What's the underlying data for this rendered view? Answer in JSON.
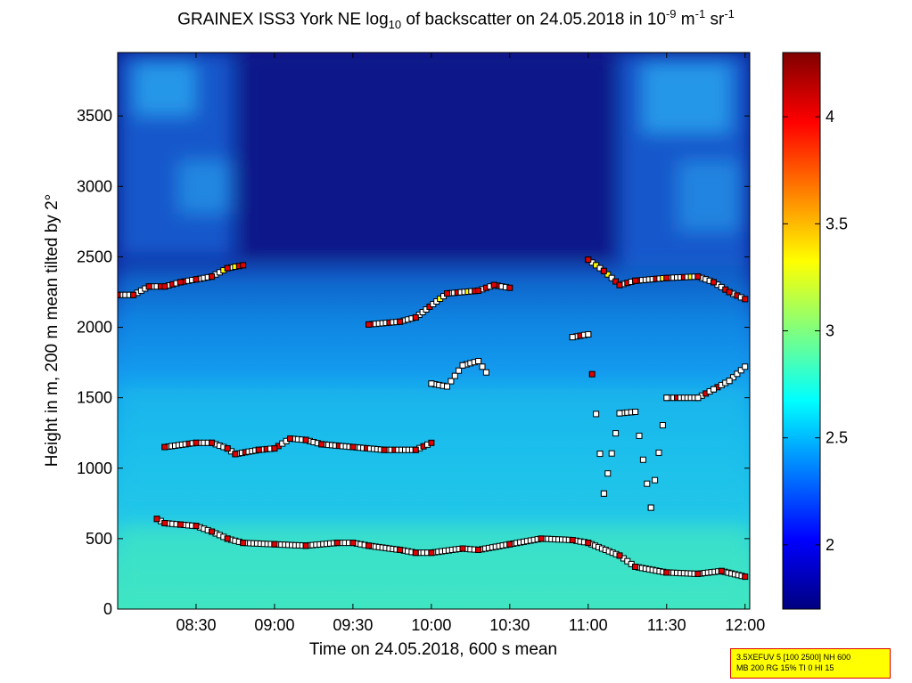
{
  "title": {
    "prefix": "GRAINEX ISS3 York NE log",
    "sub": "10",
    "mid": " of backscatter on 24.05.2018 in 10",
    "exp1": "-9",
    "unit1": " m",
    "exp2": "-1",
    "unit2": " sr",
    "exp3": "-1"
  },
  "info_box": {
    "line1": "3.5XEFUV 5 [100 2500] NH 600",
    "line2": "MB 200 RG 15% TI 0 HI 15"
  },
  "colors": {
    "background_low": "#0a1a8c",
    "mid_cyan": "#20c8e8",
    "surface_green": "#3ae0c0",
    "marker_edge": "#000000"
  },
  "chart_data": {
    "type": "heatmap",
    "title": "GRAINEX ISS3 York NE log10 of backscatter on 24.05.2018 in 10^-9 m^-1 sr^-1",
    "xlabel": "Time on 24.05.2018, 600 s mean",
    "ylabel": "Height in m, 200 m mean tilted by 2°",
    "x_ticks": [
      "08:30",
      "09:00",
      "09:30",
      "10:00",
      "10:30",
      "11:00",
      "11:30",
      "12:00"
    ],
    "x_tick_hours": [
      8.5,
      9.0,
      9.5,
      10.0,
      10.5,
      11.0,
      11.5,
      12.0
    ],
    "xlim_hours": [
      8.0,
      12.03
    ],
    "y_ticks": [
      0,
      500,
      1000,
      1500,
      2000,
      2500,
      3000,
      3500
    ],
    "ylim": [
      0,
      3950
    ],
    "colorbar": {
      "ticks": [
        2,
        2.5,
        3,
        3.5,
        4
      ],
      "tick_labels": [
        "2",
        "2.5",
        "3",
        "3.5",
        "4"
      ],
      "range": [
        1.7,
        4.3
      ],
      "colormap": "jet"
    },
    "aerosol_layer_top": [
      {
        "t": 8.0,
        "h": 2300
      },
      {
        "t": 8.5,
        "h": 2380
      },
      {
        "t": 9.0,
        "h": 2560
      },
      {
        "t": 9.5,
        "h": 2300
      },
      {
        "t": 10.0,
        "h": 2380
      },
      {
        "t": 10.5,
        "h": 2350
      },
      {
        "t": 11.0,
        "h": 2300
      },
      {
        "t": 11.5,
        "h": 2420
      },
      {
        "t": 12.0,
        "h": 2350
      }
    ],
    "series": [
      {
        "name": "",
        "marker_color": "#000000",
        "points": [
          [
            8.25,
            640
          ],
          [
            8.3,
            610
          ],
          [
            8.4,
            600
          ],
          [
            8.5,
            590
          ],
          [
            8.6,
            550
          ],
          [
            8.7,
            500
          ],
          [
            8.8,
            470
          ],
          [
            9.0,
            460
          ],
          [
            9.2,
            450
          ],
          [
            9.4,
            470
          ],
          [
            9.5,
            470
          ],
          [
            9.6,
            450
          ],
          [
            9.8,
            420
          ],
          [
            9.9,
            400
          ],
          [
            10.0,
            400
          ],
          [
            10.2,
            430
          ],
          [
            10.3,
            420
          ],
          [
            10.5,
            460
          ],
          [
            10.7,
            500
          ],
          [
            10.9,
            490
          ],
          [
            11.0,
            470
          ],
          [
            11.2,
            380
          ],
          [
            11.3,
            300
          ],
          [
            11.5,
            260
          ],
          [
            11.7,
            250
          ],
          [
            11.85,
            270
          ],
          [
            12.0,
            230
          ]
        ]
      },
      {
        "name": "",
        "marker_color": "#000000",
        "points": [
          [
            8.3,
            1150
          ],
          [
            8.5,
            1180
          ],
          [
            8.6,
            1180
          ],
          [
            8.7,
            1140
          ],
          [
            8.75,
            1100
          ],
          [
            8.9,
            1130
          ],
          [
            9.0,
            1140
          ],
          [
            9.1,
            1210
          ],
          [
            9.2,
            1200
          ],
          [
            9.3,
            1170
          ],
          [
            9.5,
            1150
          ],
          [
            9.7,
            1130
          ],
          [
            9.9,
            1130
          ],
          [
            10.0,
            1180
          ]
        ]
      },
      {
        "name": "",
        "marker_color": "#000000",
        "points": [
          [
            8.0,
            2230
          ],
          [
            8.1,
            2230
          ],
          [
            8.2,
            2290
          ],
          [
            8.3,
            2290
          ],
          [
            8.4,
            2320
          ],
          [
            8.5,
            2340
          ],
          [
            8.6,
            2360
          ],
          [
            8.7,
            2420
          ],
          [
            8.8,
            2440
          ],
          [
            9.6,
            2020
          ],
          [
            9.8,
            2040
          ],
          [
            9.9,
            2070
          ],
          [
            10.1,
            2240
          ],
          [
            10.3,
            2260
          ],
          [
            10.4,
            2300
          ],
          [
            10.5,
            2280
          ],
          [
            11.0,
            2480
          ],
          [
            11.1,
            2400
          ],
          [
            11.2,
            2300
          ],
          [
            11.3,
            2330
          ],
          [
            11.5,
            2350
          ],
          [
            11.7,
            2360
          ],
          [
            11.8,
            2320
          ],
          [
            11.9,
            2250
          ],
          [
            12.0,
            2200
          ]
        ]
      },
      {
        "name": "",
        "marker_color": "#000000",
        "points": [
          [
            10.0,
            1600
          ],
          [
            10.1,
            1580
          ],
          [
            10.2,
            1730
          ],
          [
            10.3,
            1760
          ],
          [
            10.35,
            1680
          ],
          [
            10.9,
            1930
          ],
          [
            11.0,
            1950
          ],
          [
            11.2,
            1390
          ],
          [
            11.3,
            1400
          ],
          [
            11.5,
            1500
          ],
          [
            11.7,
            1500
          ],
          [
            11.8,
            1560
          ],
          [
            11.9,
            1620
          ],
          [
            12.0,
            1720
          ],
          [
            11.4,
            720
          ],
          [
            11.1,
            820
          ]
        ]
      }
    ]
  }
}
